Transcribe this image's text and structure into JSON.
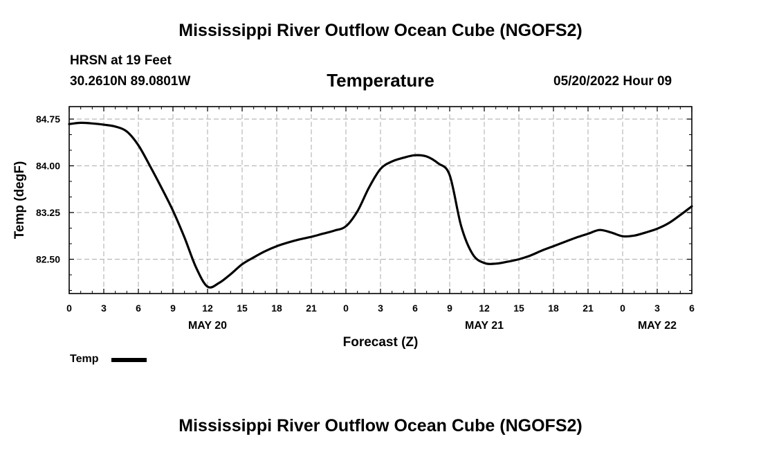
{
  "page": {
    "title_top": "Mississippi River Outflow Ocean Cube (NGOFS2)",
    "title_bottom": "Mississippi River Outflow Ocean Cube (NGOFS2)",
    "station": "HRSN at 19 Feet",
    "coords": "30.2610N  89.0801W",
    "datetime": "05/20/2022 Hour 09"
  },
  "legend": {
    "label": "Temp"
  },
  "chart_data": {
    "type": "line",
    "title": "Temperature",
    "xlabel": "Forecast (Z)",
    "ylabel": "Temp (degF)",
    "xlim": [
      0,
      54
    ],
    "ylim": [
      81.95,
      84.95
    ],
    "grid": true,
    "xticks": [
      0,
      3,
      6,
      9,
      12,
      15,
      18,
      21,
      24,
      27,
      30,
      33,
      36,
      39,
      42,
      45,
      48,
      51,
      54
    ],
    "xtick_labels": [
      "0",
      "3",
      "6",
      "9",
      "12",
      "15",
      "18",
      "21",
      "0",
      "3",
      "6",
      "9",
      "12",
      "15",
      "18",
      "21",
      "0",
      "3",
      "6"
    ],
    "yticks": [
      82.5,
      83.25,
      84.0,
      84.75
    ],
    "ytick_labels": [
      "82.50",
      "83.25",
      "84.00",
      "84.75"
    ],
    "date_labels": [
      {
        "x": 12,
        "label": "MAY 20"
      },
      {
        "x": 36,
        "label": "MAY 21"
      },
      {
        "x": 51,
        "label": "MAY 22"
      }
    ],
    "series": [
      {
        "name": "Temp",
        "x": [
          0,
          1,
          2,
          3,
          4,
          5,
          6,
          7,
          8,
          9,
          10,
          11,
          12,
          13,
          14,
          15,
          16,
          17,
          18,
          19,
          20,
          21,
          22,
          23,
          24,
          25,
          26,
          27,
          28,
          29,
          30,
          31,
          32,
          33,
          34,
          35,
          36,
          37,
          38,
          39,
          40,
          41,
          42,
          43,
          44,
          45,
          46,
          47,
          48,
          49,
          50,
          51,
          52,
          53,
          54
        ],
        "values": [
          84.67,
          84.69,
          84.68,
          84.66,
          84.63,
          84.55,
          84.33,
          84.0,
          83.65,
          83.28,
          82.85,
          82.37,
          82.06,
          82.12,
          82.26,
          82.42,
          82.53,
          82.63,
          82.71,
          82.77,
          82.82,
          82.86,
          82.91,
          82.96,
          83.03,
          83.27,
          83.65,
          83.95,
          84.07,
          84.13,
          84.17,
          84.15,
          84.04,
          83.85,
          83.03,
          82.58,
          82.44,
          82.43,
          82.46,
          82.5,
          82.56,
          82.64,
          82.71,
          82.78,
          82.85,
          82.91,
          82.97,
          82.93,
          82.87,
          82.88,
          82.93,
          82.99,
          83.08,
          83.21,
          83.35
        ]
      }
    ]
  }
}
